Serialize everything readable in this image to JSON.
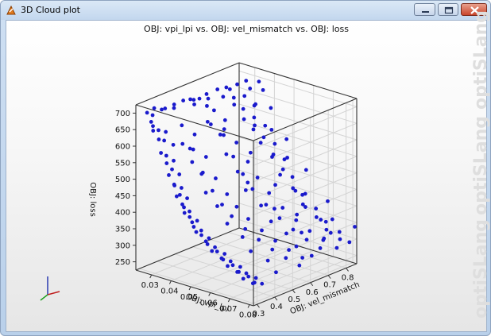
{
  "window": {
    "title": "3D Cloud plot",
    "buttons": [
      "minimize",
      "maximize",
      "close"
    ]
  },
  "watermark": [
    "optiSLang",
    "optiSLang",
    "optiSLang"
  ],
  "chart_data": {
    "type": "scatter",
    "title": "OBJ: vpi_lpi vs. OBJ: vel_mismatch vs. OBJ: loss",
    "xlabel": "OBJ: vpi_lpi",
    "ylabel": "OBJ: vel_mismatch",
    "zlabel": "OBJ: loss",
    "x_ticks": [
      "0.03",
      "0.04",
      "0.05",
      "0.06",
      "0.07",
      "0.08"
    ],
    "y_ticks": [
      "0.3",
      "0.4",
      "0.5",
      "0.6",
      "0.7",
      "0.8"
    ],
    "z_ticks": [
      "250",
      "300",
      "350",
      "400",
      "450",
      "500",
      "550",
      "600",
      "650",
      "700"
    ],
    "xlim": [
      0.022,
      0.082
    ],
    "ylim": [
      0.28,
      0.86
    ],
    "zlim": [
      225,
      725
    ],
    "marker_color": "#1a1acc",
    "grid": true,
    "points": [
      {
        "x": 0.025,
        "y": 0.31,
        "z": 700
      },
      {
        "x": 0.026,
        "y": 0.33,
        "z": 690
      },
      {
        "x": 0.025,
        "y": 0.35,
        "z": 705
      },
      {
        "x": 0.027,
        "y": 0.37,
        "z": 700
      },
      {
        "x": 0.026,
        "y": 0.4,
        "z": 695
      },
      {
        "x": 0.027,
        "y": 0.44,
        "z": 700
      },
      {
        "x": 0.028,
        "y": 0.48,
        "z": 705
      },
      {
        "x": 0.028,
        "y": 0.52,
        "z": 700
      },
      {
        "x": 0.029,
        "y": 0.56,
        "z": 695
      },
      {
        "x": 0.029,
        "y": 0.6,
        "z": 700
      },
      {
        "x": 0.03,
        "y": 0.65,
        "z": 705
      },
      {
        "x": 0.03,
        "y": 0.7,
        "z": 700
      },
      {
        "x": 0.031,
        "y": 0.75,
        "z": 700
      },
      {
        "x": 0.031,
        "y": 0.8,
        "z": 700
      },
      {
        "x": 0.027,
        "y": 0.55,
        "z": 690
      },
      {
        "x": 0.028,
        "y": 0.62,
        "z": 680
      },
      {
        "x": 0.026,
        "y": 0.45,
        "z": 685
      },
      {
        "x": 0.03,
        "y": 0.72,
        "z": 690
      },
      {
        "x": 0.029,
        "y": 0.33,
        "z": 650
      },
      {
        "x": 0.03,
        "y": 0.36,
        "z": 640
      },
      {
        "x": 0.031,
        "y": 0.34,
        "z": 620
      },
      {
        "x": 0.032,
        "y": 0.38,
        "z": 600
      },
      {
        "x": 0.033,
        "y": 0.33,
        "z": 580
      },
      {
        "x": 0.034,
        "y": 0.36,
        "z": 560
      },
      {
        "x": 0.035,
        "y": 0.34,
        "z": 540
      },
      {
        "x": 0.036,
        "y": 0.37,
        "z": 520
      },
      {
        "x": 0.037,
        "y": 0.33,
        "z": 500
      },
      {
        "x": 0.038,
        "y": 0.36,
        "z": 485
      },
      {
        "x": 0.039,
        "y": 0.34,
        "z": 470
      },
      {
        "x": 0.04,
        "y": 0.37,
        "z": 455
      },
      {
        "x": 0.042,
        "y": 0.33,
        "z": 440
      },
      {
        "x": 0.043,
        "y": 0.35,
        "z": 425
      },
      {
        "x": 0.044,
        "y": 0.34,
        "z": 412
      },
      {
        "x": 0.046,
        "y": 0.36,
        "z": 400
      },
      {
        "x": 0.047,
        "y": 0.33,
        "z": 390
      },
      {
        "x": 0.049,
        "y": 0.35,
        "z": 378
      },
      {
        "x": 0.05,
        "y": 0.34,
        "z": 368
      },
      {
        "x": 0.052,
        "y": 0.36,
        "z": 358
      },
      {
        "x": 0.054,
        "y": 0.33,
        "z": 350
      },
      {
        "x": 0.056,
        "y": 0.35,
        "z": 340
      },
      {
        "x": 0.058,
        "y": 0.34,
        "z": 333
      },
      {
        "x": 0.06,
        "y": 0.36,
        "z": 325
      },
      {
        "x": 0.062,
        "y": 0.33,
        "z": 318
      },
      {
        "x": 0.064,
        "y": 0.35,
        "z": 312
      },
      {
        "x": 0.066,
        "y": 0.34,
        "z": 306
      },
      {
        "x": 0.068,
        "y": 0.36,
        "z": 300
      },
      {
        "x": 0.07,
        "y": 0.33,
        "z": 295
      },
      {
        "x": 0.072,
        "y": 0.35,
        "z": 290
      },
      {
        "x": 0.074,
        "y": 0.34,
        "z": 286
      },
      {
        "x": 0.076,
        "y": 0.36,
        "z": 281
      },
      {
        "x": 0.078,
        "y": 0.33,
        "z": 277
      },
      {
        "x": 0.08,
        "y": 0.35,
        "z": 273
      },
      {
        "x": 0.03,
        "y": 0.45,
        "z": 640
      },
      {
        "x": 0.032,
        "y": 0.5,
        "z": 605
      },
      {
        "x": 0.034,
        "y": 0.47,
        "z": 570
      },
      {
        "x": 0.036,
        "y": 0.52,
        "z": 540
      },
      {
        "x": 0.038,
        "y": 0.48,
        "z": 505
      },
      {
        "x": 0.04,
        "y": 0.53,
        "z": 480
      },
      {
        "x": 0.042,
        "y": 0.49,
        "z": 455
      },
      {
        "x": 0.044,
        "y": 0.55,
        "z": 435
      },
      {
        "x": 0.046,
        "y": 0.5,
        "z": 418
      },
      {
        "x": 0.048,
        "y": 0.56,
        "z": 402
      },
      {
        "x": 0.05,
        "y": 0.51,
        "z": 388
      },
      {
        "x": 0.053,
        "y": 0.57,
        "z": 372
      },
      {
        "x": 0.056,
        "y": 0.52,
        "z": 358
      },
      {
        "x": 0.059,
        "y": 0.58,
        "z": 346
      },
      {
        "x": 0.062,
        "y": 0.53,
        "z": 334
      },
      {
        "x": 0.065,
        "y": 0.59,
        "z": 323
      },
      {
        "x": 0.068,
        "y": 0.54,
        "z": 313
      },
      {
        "x": 0.071,
        "y": 0.6,
        "z": 304
      },
      {
        "x": 0.074,
        "y": 0.55,
        "z": 296
      },
      {
        "x": 0.077,
        "y": 0.61,
        "z": 289
      },
      {
        "x": 0.08,
        "y": 0.56,
        "z": 282
      },
      {
        "x": 0.031,
        "y": 0.62,
        "z": 650
      },
      {
        "x": 0.033,
        "y": 0.66,
        "z": 615
      },
      {
        "x": 0.035,
        "y": 0.63,
        "z": 580
      },
      {
        "x": 0.037,
        "y": 0.68,
        "z": 550
      },
      {
        "x": 0.039,
        "y": 0.64,
        "z": 520
      },
      {
        "x": 0.041,
        "y": 0.7,
        "z": 495
      },
      {
        "x": 0.043,
        "y": 0.65,
        "z": 472
      },
      {
        "x": 0.045,
        "y": 0.71,
        "z": 452
      },
      {
        "x": 0.047,
        "y": 0.66,
        "z": 432
      },
      {
        "x": 0.05,
        "y": 0.72,
        "z": 412
      },
      {
        "x": 0.053,
        "y": 0.67,
        "z": 393
      },
      {
        "x": 0.056,
        "y": 0.73,
        "z": 376
      },
      {
        "x": 0.059,
        "y": 0.68,
        "z": 361
      },
      {
        "x": 0.062,
        "y": 0.74,
        "z": 347
      },
      {
        "x": 0.065,
        "y": 0.69,
        "z": 335
      },
      {
        "x": 0.068,
        "y": 0.75,
        "z": 323
      },
      {
        "x": 0.071,
        "y": 0.7,
        "z": 313
      },
      {
        "x": 0.074,
        "y": 0.76,
        "z": 304
      },
      {
        "x": 0.077,
        "y": 0.71,
        "z": 296
      },
      {
        "x": 0.08,
        "y": 0.77,
        "z": 289
      },
      {
        "x": 0.032,
        "y": 0.78,
        "z": 660
      },
      {
        "x": 0.034,
        "y": 0.82,
        "z": 630
      },
      {
        "x": 0.036,
        "y": 0.79,
        "z": 600
      },
      {
        "x": 0.038,
        "y": 0.83,
        "z": 570
      },
      {
        "x": 0.04,
        "y": 0.8,
        "z": 545
      },
      {
        "x": 0.042,
        "y": 0.84,
        "z": 520
      },
      {
        "x": 0.044,
        "y": 0.81,
        "z": 498
      },
      {
        "x": 0.046,
        "y": 0.85,
        "z": 478
      },
      {
        "x": 0.048,
        "y": 0.82,
        "z": 458
      },
      {
        "x": 0.051,
        "y": 0.84,
        "z": 436
      },
      {
        "x": 0.054,
        "y": 0.81,
        "z": 414
      },
      {
        "x": 0.057,
        "y": 0.83,
        "z": 395
      },
      {
        "x": 0.06,
        "y": 0.8,
        "z": 378
      },
      {
        "x": 0.063,
        "y": 0.84,
        "z": 362
      },
      {
        "x": 0.066,
        "y": 0.81,
        "z": 348
      },
      {
        "x": 0.069,
        "y": 0.83,
        "z": 335
      },
      {
        "x": 0.072,
        "y": 0.8,
        "z": 323
      },
      {
        "x": 0.075,
        "y": 0.84,
        "z": 313
      },
      {
        "x": 0.078,
        "y": 0.81,
        "z": 303
      },
      {
        "x": 0.081,
        "y": 0.83,
        "z": 295
      },
      {
        "x": 0.034,
        "y": 0.41,
        "z": 600
      },
      {
        "x": 0.036,
        "y": 0.43,
        "z": 585
      },
      {
        "x": 0.038,
        "y": 0.42,
        "z": 550
      },
      {
        "x": 0.041,
        "y": 0.44,
        "z": 515
      },
      {
        "x": 0.045,
        "y": 0.42,
        "z": 470
      },
      {
        "x": 0.049,
        "y": 0.44,
        "z": 432
      },
      {
        "x": 0.055,
        "y": 0.43,
        "z": 392
      },
      {
        "x": 0.061,
        "y": 0.45,
        "z": 358
      },
      {
        "x": 0.067,
        "y": 0.43,
        "z": 330
      },
      {
        "x": 0.073,
        "y": 0.46,
        "z": 306
      },
      {
        "x": 0.079,
        "y": 0.44,
        "z": 286
      },
      {
        "x": 0.033,
        "y": 0.58,
        "z": 620
      },
      {
        "x": 0.036,
        "y": 0.6,
        "z": 590
      },
      {
        "x": 0.04,
        "y": 0.59,
        "z": 540
      },
      {
        "x": 0.044,
        "y": 0.61,
        "z": 490
      },
      {
        "x": 0.049,
        "y": 0.6,
        "z": 445
      },
      {
        "x": 0.055,
        "y": 0.62,
        "z": 405
      },
      {
        "x": 0.061,
        "y": 0.61,
        "z": 370
      },
      {
        "x": 0.067,
        "y": 0.63,
        "z": 340
      },
      {
        "x": 0.073,
        "y": 0.62,
        "z": 314
      },
      {
        "x": 0.079,
        "y": 0.64,
        "z": 292
      },
      {
        "x": 0.035,
        "y": 0.74,
        "z": 635
      },
      {
        "x": 0.039,
        "y": 0.76,
        "z": 588
      },
      {
        "x": 0.043,
        "y": 0.75,
        "z": 545
      },
      {
        "x": 0.047,
        "y": 0.77,
        "z": 505
      },
      {
        "x": 0.052,
        "y": 0.76,
        "z": 462
      },
      {
        "x": 0.058,
        "y": 0.78,
        "z": 420
      },
      {
        "x": 0.064,
        "y": 0.77,
        "z": 384
      },
      {
        "x": 0.07,
        "y": 0.79,
        "z": 352
      },
      {
        "x": 0.076,
        "y": 0.78,
        "z": 325
      },
      {
        "x": 0.028,
        "y": 0.3,
        "z": 680
      },
      {
        "x": 0.028,
        "y": 0.31,
        "z": 665
      },
      {
        "x": 0.029,
        "y": 0.3,
        "z": 655
      },
      {
        "x": 0.031,
        "y": 0.31,
        "z": 630
      },
      {
        "x": 0.033,
        "y": 0.3,
        "z": 595
      },
      {
        "x": 0.035,
        "y": 0.31,
        "z": 565
      },
      {
        "x": 0.037,
        "y": 0.3,
        "z": 535
      },
      {
        "x": 0.039,
        "y": 0.31,
        "z": 505
      },
      {
        "x": 0.041,
        "y": 0.3,
        "z": 478
      },
      {
        "x": 0.043,
        "y": 0.31,
        "z": 455
      },
      {
        "x": 0.045,
        "y": 0.3,
        "z": 435
      },
      {
        "x": 0.048,
        "y": 0.31,
        "z": 410
      },
      {
        "x": 0.051,
        "y": 0.3,
        "z": 388
      },
      {
        "x": 0.055,
        "y": 0.31,
        "z": 365
      },
      {
        "x": 0.059,
        "y": 0.3,
        "z": 345
      },
      {
        "x": 0.063,
        "y": 0.31,
        "z": 328
      },
      {
        "x": 0.067,
        "y": 0.3,
        "z": 314
      },
      {
        "x": 0.071,
        "y": 0.31,
        "z": 301
      },
      {
        "x": 0.075,
        "y": 0.3,
        "z": 290
      },
      {
        "x": 0.079,
        "y": 0.31,
        "z": 281
      },
      {
        "x": 0.03,
        "y": 0.52,
        "z": 688
      },
      {
        "x": 0.031,
        "y": 0.58,
        "z": 672
      },
      {
        "x": 0.032,
        "y": 0.66,
        "z": 684
      },
      {
        "x": 0.032,
        "y": 0.72,
        "z": 668
      },
      {
        "x": 0.033,
        "y": 0.8,
        "z": 680
      },
      {
        "x": 0.033,
        "y": 0.85,
        "z": 690
      },
      {
        "x": 0.034,
        "y": 0.7,
        "z": 655
      },
      {
        "x": 0.035,
        "y": 0.54,
        "z": 640
      },
      {
        "x": 0.036,
        "y": 0.84,
        "z": 672
      },
      {
        "x": 0.037,
        "y": 0.78,
        "z": 640
      },
      {
        "x": 0.038,
        "y": 0.6,
        "z": 610
      },
      {
        "x": 0.039,
        "y": 0.7,
        "z": 620
      },
      {
        "x": 0.04,
        "y": 0.84,
        "z": 625
      },
      {
        "x": 0.042,
        "y": 0.72,
        "z": 590
      },
      {
        "x": 0.044,
        "y": 0.8,
        "z": 575
      },
      {
        "x": 0.046,
        "y": 0.66,
        "z": 540
      },
      {
        "x": 0.048,
        "y": 0.84,
        "z": 545
      },
      {
        "x": 0.05,
        "y": 0.6,
        "z": 470
      },
      {
        "x": 0.052,
        "y": 0.8,
        "z": 505
      },
      {
        "x": 0.055,
        "y": 0.7,
        "z": 450
      },
      {
        "x": 0.058,
        "y": 0.84,
        "z": 470
      },
      {
        "x": 0.06,
        "y": 0.64,
        "z": 400
      },
      {
        "x": 0.063,
        "y": 0.78,
        "z": 420
      },
      {
        "x": 0.066,
        "y": 0.7,
        "z": 380
      },
      {
        "x": 0.069,
        "y": 0.84,
        "z": 395
      },
      {
        "x": 0.072,
        "y": 0.66,
        "z": 345
      },
      {
        "x": 0.075,
        "y": 0.8,
        "z": 360
      },
      {
        "x": 0.078,
        "y": 0.72,
        "z": 325
      },
      {
        "x": 0.081,
        "y": 0.86,
        "z": 335
      }
    ]
  }
}
